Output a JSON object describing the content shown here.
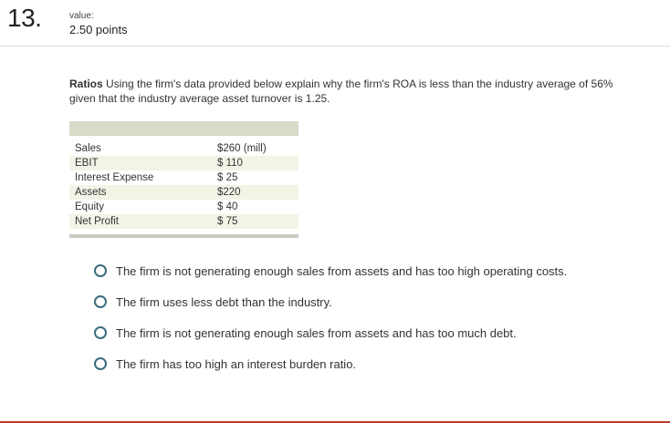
{
  "question": {
    "number": "13.",
    "value_label": "value:",
    "points": "2.50 points",
    "topic": "Ratios",
    "text": " Using the firm's data provided below explain why the firm's ROA is less than the industry average of 56% given that the industry average asset turnover is 1.25."
  },
  "table": {
    "rows": [
      {
        "label": "Sales",
        "value": "$260 (mill)"
      },
      {
        "label": "EBIT",
        "value": "$  110"
      },
      {
        "label": "Interest Expense",
        "value": "$  25"
      },
      {
        "label": "Assets",
        "value": "$220"
      },
      {
        "label": "Equity",
        "value": "$  40"
      },
      {
        "label": "Net Profit",
        "value": "$  75"
      }
    ]
  },
  "options": [
    {
      "text": "The firm is not generating enough sales from assets and has too high operating costs."
    },
    {
      "text": "The firm uses less debt than the industry."
    },
    {
      "text": "The firm is not generating enough sales from assets and has too much debt."
    },
    {
      "text": "The firm has too high an interest burden ratio."
    }
  ],
  "colors": {
    "radio_border": "#3a6d7a",
    "table_header": "#d8dcc8",
    "row_shade": "#f2f4e6",
    "bottom_border": "#c0392b"
  }
}
